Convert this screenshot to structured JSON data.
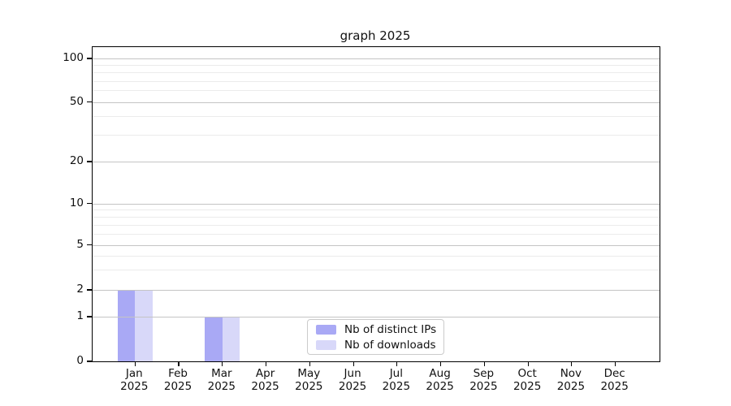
{
  "chart_data": {
    "type": "bar",
    "title": "graph 2025",
    "year": "2025",
    "categories": [
      "Jan",
      "Feb",
      "Mar",
      "Apr",
      "May",
      "Jun",
      "Jul",
      "Aug",
      "Sep",
      "Oct",
      "Nov",
      "Dec"
    ],
    "series": [
      {
        "name": "Nb of distinct IPs",
        "color": "#a9a9f5",
        "values": [
          2,
          0,
          1,
          0,
          0,
          0,
          0,
          0,
          0,
          0,
          0,
          0
        ]
      },
      {
        "name": "Nb of downloads",
        "color": "#d8d8f9",
        "values": [
          2,
          0,
          1,
          0,
          0,
          0,
          0,
          0,
          0,
          0,
          0,
          0
        ]
      }
    ],
    "y_ticks": [
      100,
      50,
      20,
      10,
      5,
      2,
      1,
      0
    ],
    "y_minor_ticks": [
      90,
      80,
      70,
      60,
      40,
      30,
      9,
      8,
      7,
      6,
      4,
      3
    ],
    "ylim": [
      0,
      110
    ],
    "grid": true,
    "legend_position": "lower-center",
    "colors": {
      "major_grid": "#c4c4c4",
      "minor_grid": "#ebebeb",
      "axis": "#000000",
      "legend_border": "#cbcbcb"
    }
  }
}
